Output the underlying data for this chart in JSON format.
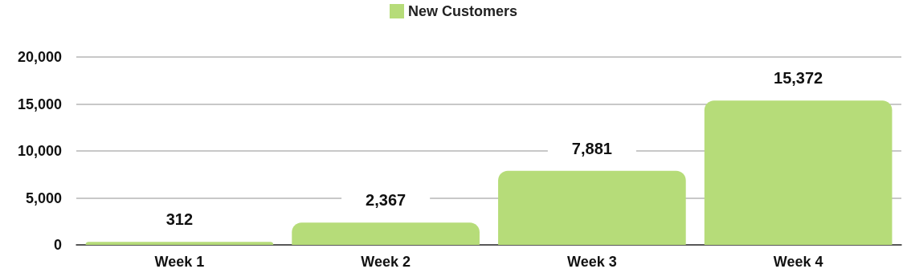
{
  "chart_data": {
    "type": "bar",
    "categories": [
      "Week 1",
      "Week 2",
      "Week 3",
      "Week 4"
    ],
    "series": [
      {
        "name": "New Customers",
        "color": "#b6dc79",
        "values": [
          312,
          2367,
          7881,
          15372
        ],
        "value_labels": [
          "312",
          "2,367",
          "7,881",
          "15,372"
        ]
      }
    ],
    "ylim": [
      0,
      20000
    ],
    "yticks": [
      {
        "value": 0,
        "label": "0"
      },
      {
        "value": 5000,
        "label": "5,000"
      },
      {
        "value": 10000,
        "label": "10,000"
      },
      {
        "value": 15000,
        "label": "15,000"
      },
      {
        "value": 20000,
        "label": "20,000"
      }
    ],
    "grid": "y",
    "legend": "top"
  }
}
